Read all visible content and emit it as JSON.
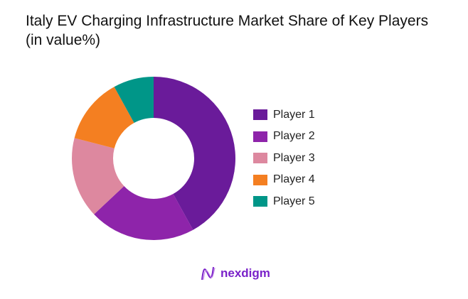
{
  "chart_data": {
    "type": "pie",
    "donut": true,
    "title": " Italy EV Charging Infrastructure Market Share of Key Players\n(in value%)",
    "categories": [
      "Player 1",
      "Player 2",
      "Player 3",
      "Player 4",
      "Player 5"
    ],
    "values": [
      42,
      21,
      16,
      13,
      8
    ],
    "colors": [
      "#6a1b9a",
      "#8e24aa",
      "#dd889f",
      "#f47f21",
      "#009688"
    ],
    "legend_position": "right"
  },
  "brand": {
    "name": "nexdigm",
    "color": "#7a22c9"
  }
}
